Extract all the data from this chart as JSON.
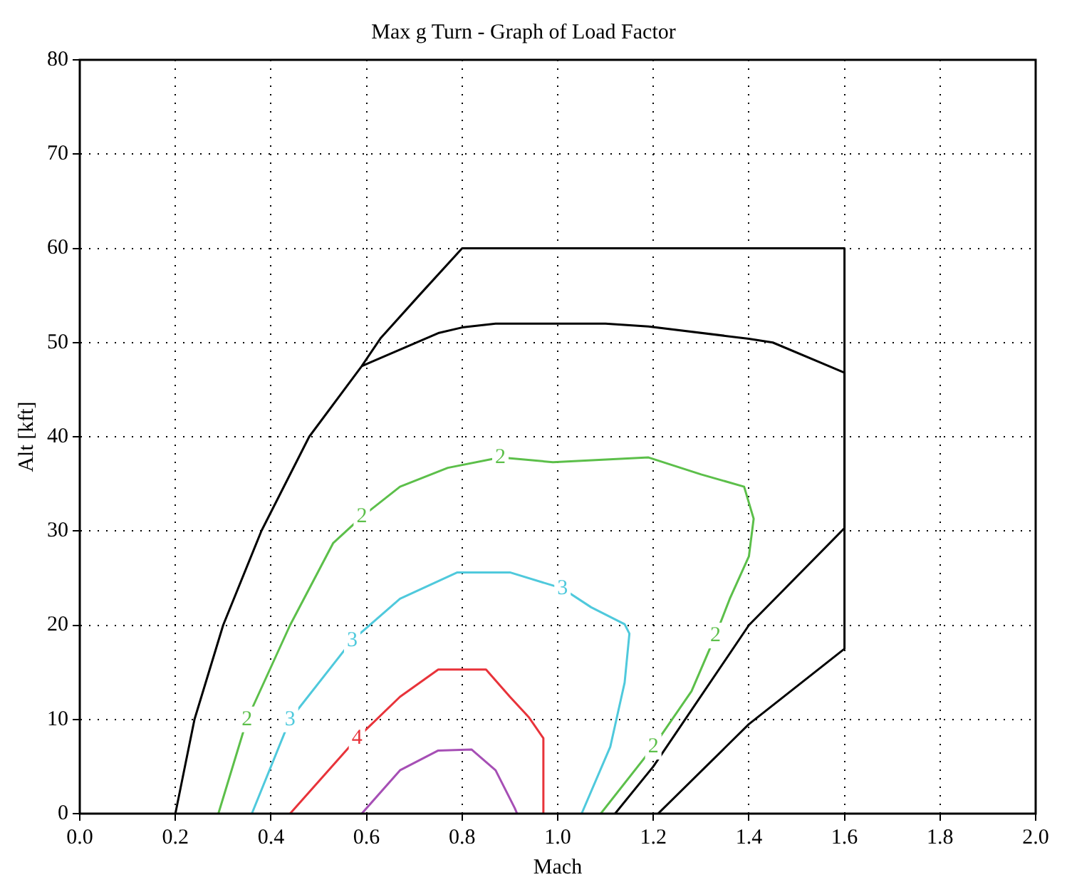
{
  "chart_data": {
    "type": "line",
    "title": "Max g Turn - Graph of Load Factor",
    "xlabel": "Mach",
    "ylabel": "Alt [kft]",
    "xlim": [
      0,
      2
    ],
    "xticks": [
      {
        "value": 0,
        "label": "0.0"
      },
      {
        "value": 0.2,
        "label": "0.2"
      },
      {
        "value": 0.4,
        "label": "0.4"
      },
      {
        "value": 0.6,
        "label": "0.6"
      },
      {
        "value": 0.8,
        "label": "0.8"
      },
      {
        "value": 1,
        "label": "1.0"
      },
      {
        "value": 1.2,
        "label": "1.2"
      },
      {
        "value": 1.4,
        "label": "1.4"
      },
      {
        "value": 1.6,
        "label": "1.6"
      },
      {
        "value": 1.8,
        "label": "1.8"
      },
      {
        "value": 2,
        "label": "2.0"
      }
    ],
    "ylim": [
      0,
      80
    ],
    "yticks": [
      0,
      10,
      20,
      30,
      40,
      50,
      60,
      70,
      80
    ],
    "grid": true,
    "legend": false,
    "marker": "none",
    "line_style": "solid",
    "series": [
      {
        "color": "#000000",
        "x": [
          0.2,
          0.24,
          0.3,
          0.38,
          0.48,
          0.59,
          0.63,
          0.71,
          0.8,
          1.6,
          1.6,
          1.4,
          1.21
        ],
        "values": [
          0,
          10,
          20,
          30,
          40,
          47.5,
          50.5,
          55,
          60,
          60,
          17.5,
          9.5,
          0
        ]
      },
      {
        "color": "#000000",
        "x": [
          0.59,
          0.75,
          0.8,
          0.87,
          1.1,
          1.19,
          1.4,
          1.45,
          1.6,
          1.6,
          1.4,
          1.2,
          1.12
        ],
        "values": [
          47.5,
          51,
          51.6,
          52,
          52,
          51.7,
          50.4,
          50,
          46.8,
          30.3,
          20,
          5,
          0
        ]
      },
      {
        "color": "#5cbf4a",
        "x": [
          0.29,
          0.35,
          0.44,
          0.53,
          0.59,
          0.67,
          0.77,
          0.88,
          0.99,
          1.19,
          1.3,
          1.39,
          1.41,
          1.4,
          1.36,
          1.33,
          1.28,
          1.2,
          1.09
        ],
        "values": [
          0,
          10,
          20,
          28.7,
          31.5,
          34.7,
          36.7,
          37.8,
          37.3,
          37.8,
          36,
          34.7,
          31.3,
          27.3,
          22.8,
          18.9,
          13,
          7.1,
          0
        ]
      },
      {
        "color": "#4fc9dc",
        "x": [
          0.36,
          0.44,
          0.57,
          0.67,
          0.79,
          0.9,
          1.01,
          1.07,
          1.14,
          1.15,
          1.14,
          1.11,
          1.05
        ],
        "values": [
          0,
          10,
          18.4,
          22.8,
          25.6,
          25.6,
          23.9,
          21.9,
          20.1,
          19.1,
          13.9,
          7.1,
          0
        ]
      },
      {
        "color": "#e8333a",
        "x": [
          0.44,
          0.58,
          0.67,
          0.75,
          0.85,
          0.9,
          0.94,
          0.97,
          0.97
        ],
        "values": [
          0,
          8,
          12.4,
          15.3,
          15.3,
          12.4,
          10.2,
          8,
          0
        ]
      },
      {
        "color": "#a64fb5",
        "x": [
          0.59,
          0.67,
          0.75,
          0.82,
          0.87,
          0.91,
          0.915
        ],
        "values": [
          0,
          4.6,
          6.7,
          6.8,
          4.6,
          0.6,
          0
        ]
      }
    ],
    "annotations": [
      {
        "text": "2",
        "x": 0.88,
        "y": 37.8
      },
      {
        "text": "2",
        "x": 0.59,
        "y": 31.5
      },
      {
        "text": "2",
        "x": 0.35,
        "y": 10
      },
      {
        "text": "2",
        "x": 1.33,
        "y": 18.9
      },
      {
        "text": "2",
        "x": 1.2,
        "y": 7.1
      },
      {
        "text": "3",
        "x": 1.01,
        "y": 23.9
      },
      {
        "text": "3",
        "x": 0.57,
        "y": 18.4
      },
      {
        "text": "3",
        "x": 0.44,
        "y": 10
      },
      {
        "text": "4",
        "x": 0.58,
        "y": 8
      }
    ]
  }
}
